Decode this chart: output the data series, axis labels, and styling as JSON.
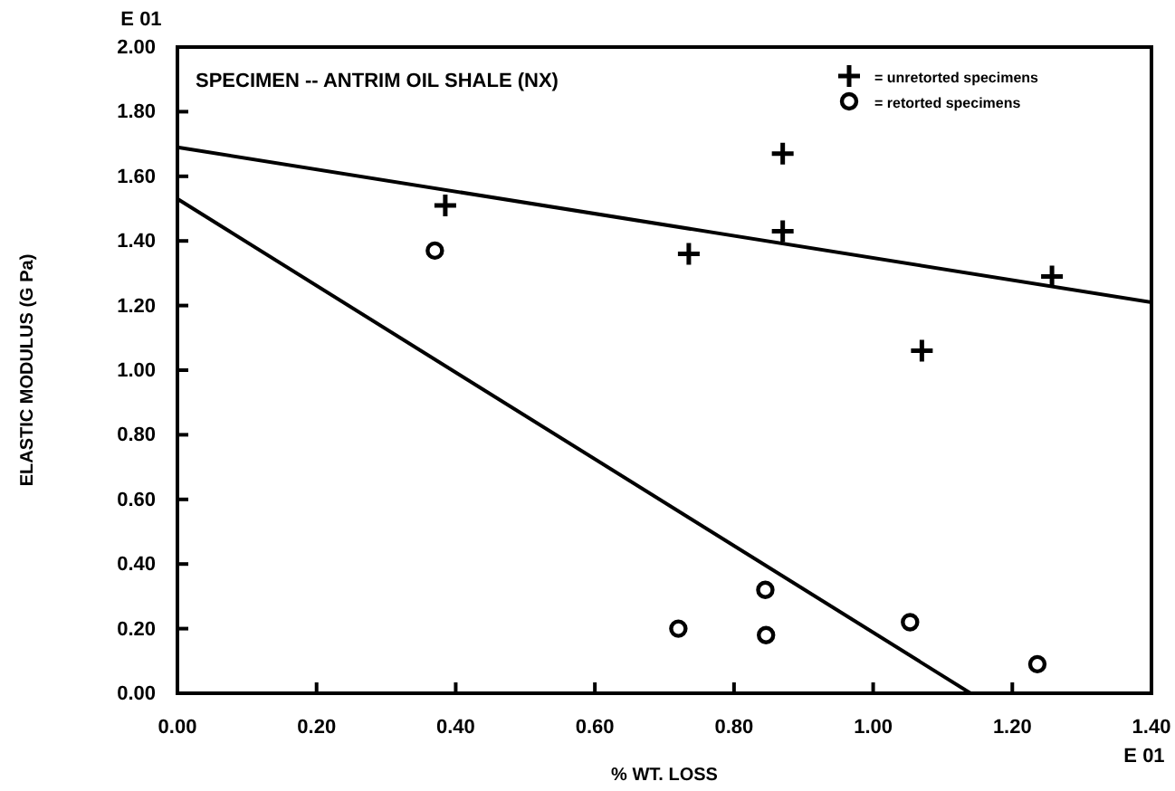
{
  "chart_data": {
    "type": "scatter",
    "title": "SPECIMEN -- ANTRIM OIL SHALE (NX)",
    "xlabel": "% WT. LOSS",
    "ylabel": "ELASTIC MODULUS (G Pa)",
    "annotations": [
      "E 01",
      "E 01"
    ],
    "xlim": [
      0,
      1.4
    ],
    "xticks": [
      {
        "value": 0,
        "label": "0.00"
      },
      {
        "value": 0.2,
        "label": "0.20"
      },
      {
        "value": 0.4,
        "label": "0.40"
      },
      {
        "value": 0.6,
        "label": "0.60"
      },
      {
        "value": 0.8,
        "label": "0.80"
      },
      {
        "value": 1.0,
        "label": "1.00"
      },
      {
        "value": 1.2,
        "label": "1.20"
      },
      {
        "value": 1.4,
        "label": "1.40"
      }
    ],
    "ylim": [
      0,
      2.0
    ],
    "yticks": [
      {
        "value": 0,
        "label": "0.00"
      },
      {
        "value": 0.2,
        "label": "0.20"
      },
      {
        "value": 0.4,
        "label": "0.40"
      },
      {
        "value": 0.6,
        "label": "0.60"
      },
      {
        "value": 0.8,
        "label": "0.80"
      },
      {
        "value": 1.0,
        "label": "1.00"
      },
      {
        "value": 1.2,
        "label": "1.20"
      },
      {
        "value": 1.4,
        "label": "1.40"
      },
      {
        "value": 1.6,
        "label": "1.60"
      },
      {
        "value": 1.8,
        "label": "1.80"
      },
      {
        "value": 2.0,
        "label": "2.00"
      }
    ],
    "grid": false,
    "legend": "top right",
    "series": [
      {
        "name": "= unretorted specimens",
        "color": "#000000",
        "marker": "cross",
        "x": [
          0.385,
          0.87,
          0.87,
          0.735,
          1.07,
          1.257
        ],
        "values": [
          1.51,
          1.67,
          1.43,
          1.36,
          1.06,
          1.29
        ]
      },
      {
        "name": "= retorted specimens",
        "color": "#000000",
        "marker": "circle",
        "x": [
          0.37,
          0.72,
          0.845,
          0.846,
          1.053,
          1.236
        ],
        "values": [
          1.37,
          0.2,
          0.32,
          0.18,
          0.22,
          0.09
        ]
      },
      {
        "type": "line",
        "color": "#000000",
        "x": [
          0,
          1.4
        ],
        "values": [
          1.69,
          1.21
        ]
      },
      {
        "type": "line",
        "color": "#000000",
        "x": [
          0,
          1.14
        ],
        "values": [
          1.53,
          0
        ]
      }
    ]
  }
}
